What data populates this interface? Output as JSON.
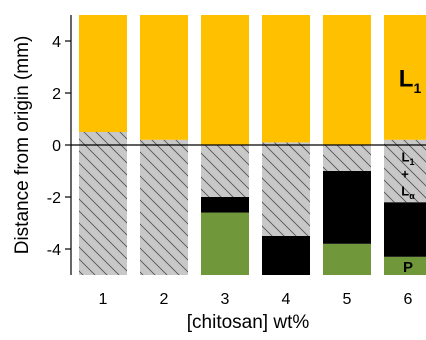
{
  "chart_data": {
    "type": "bar",
    "subtype": "stacked-segments",
    "title": "",
    "xlabel": "[chitosan] wt%",
    "ylabel": "Distance from origin (mm)",
    "categories": [
      "1",
      "2",
      "3",
      "4",
      "5",
      "6"
    ],
    "ylim": [
      -5,
      5
    ],
    "yticks": [
      "-4",
      "-2",
      "0",
      "2",
      "4"
    ],
    "grid": false,
    "legend": "none",
    "colors": {
      "L1": "#FFC000",
      "L1_plus_La": "#C8C8C8",
      "La": "#000000",
      "P": "#70983A",
      "hatch": "#555555"
    },
    "bars": [
      {
        "category": "1",
        "segments": [
          {
            "phase": "L1_plus_La",
            "from": -5,
            "to": 0.5
          },
          {
            "phase": "L1",
            "from": 0.5,
            "to": 5
          }
        ]
      },
      {
        "category": "2",
        "segments": [
          {
            "phase": "L1_plus_La",
            "from": -5,
            "to": 0.2
          },
          {
            "phase": "L1",
            "from": 0.2,
            "to": 5
          }
        ]
      },
      {
        "category": "3",
        "segments": [
          {
            "phase": "P",
            "from": -5,
            "to": -2.6
          },
          {
            "phase": "La",
            "from": -2.6,
            "to": -2.0
          },
          {
            "phase": "L1_plus_La",
            "from": -2.0,
            "to": 0
          },
          {
            "phase": "L1",
            "from": 0,
            "to": 5
          }
        ]
      },
      {
        "category": "4",
        "segments": [
          {
            "phase": "La",
            "from": -5,
            "to": -3.5
          },
          {
            "phase": "L1_plus_La",
            "from": -3.5,
            "to": 0.1
          },
          {
            "phase": "L1",
            "from": 0.1,
            "to": 5
          }
        ]
      },
      {
        "category": "5",
        "segments": [
          {
            "phase": "P",
            "from": -5,
            "to": -3.8
          },
          {
            "phase": "La",
            "from": -3.8,
            "to": -1.0
          },
          {
            "phase": "L1_plus_La",
            "from": -1.0,
            "to": 0
          },
          {
            "phase": "L1",
            "from": 0,
            "to": 5
          }
        ]
      },
      {
        "category": "6",
        "segments": [
          {
            "phase": "P",
            "from": -5,
            "to": -4.3
          },
          {
            "phase": "La",
            "from": -4.3,
            "to": -2.2
          },
          {
            "phase": "L1_plus_La",
            "from": -2.2,
            "to": 0.2
          },
          {
            "phase": "L1",
            "from": 0.2,
            "to": 5
          }
        ]
      }
    ],
    "annotations": {
      "L1": {
        "main": "L",
        "sub": "1",
        "value": 2.6
      },
      "L1_plus_La": {
        "line1_main": "L",
        "line1_sub": "1",
        "line2": "+",
        "line3_main": "L",
        "line3_sub": "α",
        "value": -1.1
      },
      "La": {
        "main": "L",
        "sub": "α",
        "value": -3.3
      },
      "P": {
        "text": "P",
        "value": -4.65
      }
    }
  }
}
